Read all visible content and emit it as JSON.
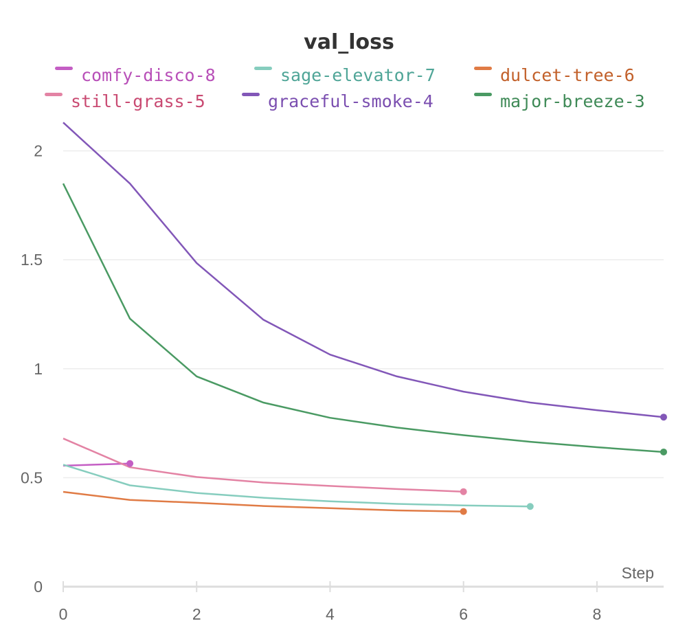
{
  "chart_data": {
    "type": "line",
    "title": "val_loss",
    "xlabel": "Step",
    "ylabel": "",
    "xlim": [
      0,
      9
    ],
    "ylim": [
      0,
      2.15
    ],
    "xticks": [
      0,
      2,
      4,
      6,
      8
    ],
    "yticks": [
      0,
      0.5,
      1,
      1.5,
      2
    ],
    "xtick_labels": [
      "0",
      "2",
      "4",
      "6",
      "8"
    ],
    "ytick_labels": [
      "0",
      "0.5",
      "1",
      "1.5",
      "2"
    ],
    "grid": true,
    "legend_position": "top",
    "series": [
      {
        "name": "comfy-disco-8",
        "color": "#c45ec4",
        "x": [
          0,
          1
        ],
        "y": [
          0.555,
          0.565
        ]
      },
      {
        "name": "sage-elevator-7",
        "color": "#86cdbe",
        "x": [
          0,
          1,
          2,
          3,
          4,
          5,
          6,
          7
        ],
        "y": [
          0.56,
          0.465,
          0.43,
          0.408,
          0.392,
          0.38,
          0.373,
          0.368
        ]
      },
      {
        "name": "dulcet-tree-6",
        "color": "#e07b45",
        "x": [
          0,
          1,
          2,
          3,
          4,
          5,
          6
        ],
        "y": [
          0.435,
          0.398,
          0.385,
          0.37,
          0.36,
          0.35,
          0.345
        ]
      },
      {
        "name": "still-grass-5",
        "color": "#e383a4",
        "x": [
          0,
          1,
          2,
          3,
          4,
          5,
          6
        ],
        "y": [
          0.68,
          0.548,
          0.503,
          0.478,
          0.462,
          0.448,
          0.436
        ]
      },
      {
        "name": "graceful-smoke-4",
        "color": "#8257b8",
        "x": [
          0,
          1,
          2,
          3,
          4,
          5,
          6,
          7,
          8,
          9
        ],
        "y": [
          2.13,
          1.85,
          1.485,
          1.225,
          1.065,
          0.965,
          0.895,
          0.845,
          0.81,
          0.778
        ]
      },
      {
        "name": "major-breeze-3",
        "color": "#4a9a63",
        "x": [
          0,
          1,
          2,
          3,
          4,
          5,
          6,
          7,
          8,
          9
        ],
        "y": [
          1.85,
          1.23,
          0.965,
          0.845,
          0.775,
          0.73,
          0.695,
          0.665,
          0.64,
          0.618
        ]
      }
    ]
  },
  "legend_text_colors": {
    "comfy-disco-8": "#b84fb8",
    "sage-elevator-7": "#4fa597",
    "dulcet-tree-6": "#c2602a",
    "still-grass-5": "#c94a72",
    "graceful-smoke-4": "#7b4fb0",
    "major-breeze-3": "#3f8a57"
  }
}
